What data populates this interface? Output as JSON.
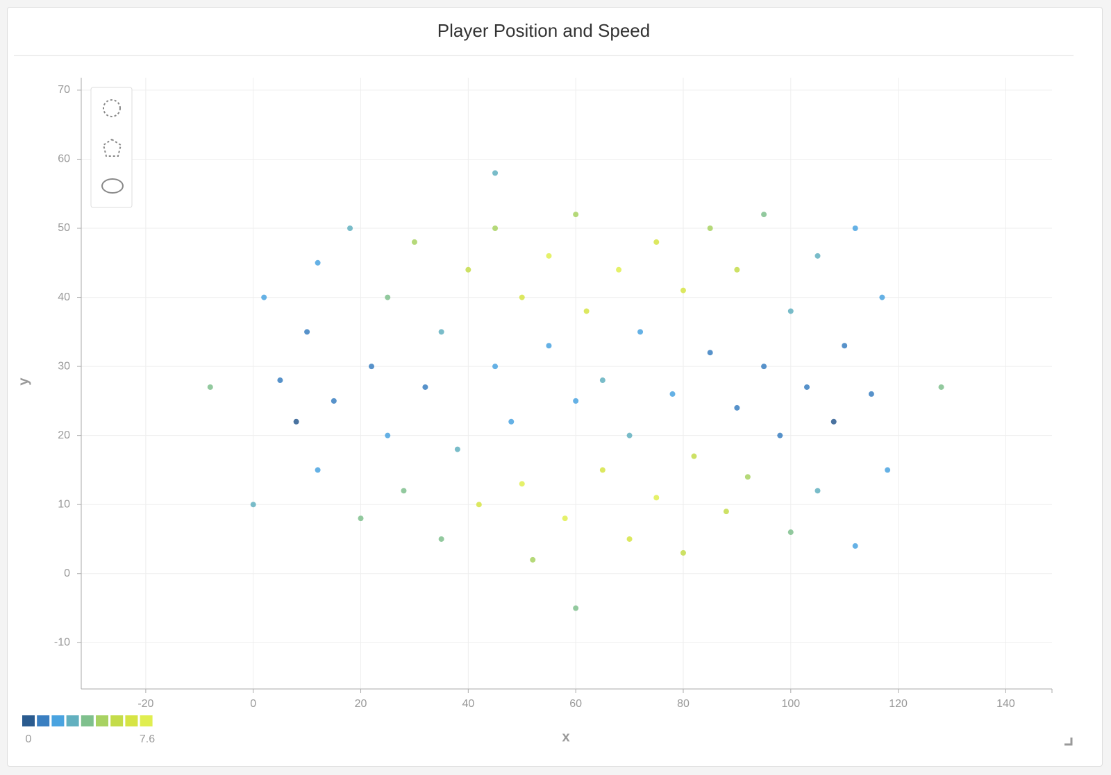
{
  "chart_data": {
    "type": "scatter",
    "title": "Player Position and Speed",
    "x_label": "x",
    "y_label": "y",
    "xlim": [
      -32,
      148.6
    ],
    "ylim": [
      -16.7,
      71.8
    ],
    "xticks": [
      -20,
      0,
      20,
      40,
      60,
      80,
      100,
      120,
      140
    ],
    "yticks": [
      -10,
      0,
      10,
      20,
      30,
      40,
      50,
      60,
      70
    ],
    "grid": true,
    "colorscale": {
      "min": 0,
      "max": 7.6,
      "colors": [
        "#2a5b8f",
        "#3a7fc1",
        "#4aa3e0",
        "#62b0bf",
        "#7fc08d",
        "#a8d262",
        "#c4dc4a",
        "#d6e444",
        "#e0ee50"
      ]
    },
    "x": [
      5,
      8,
      10,
      12,
      12,
      15,
      18,
      20,
      22,
      25,
      25,
      28,
      30,
      32,
      35,
      35,
      38,
      40,
      42,
      45,
      45,
      48,
      50,
      50,
      52,
      55,
      55,
      58,
      60,
      60,
      62,
      65,
      65,
      68,
      70,
      70,
      72,
      75,
      75,
      78,
      80,
      80,
      82,
      85,
      85,
      88,
      90,
      90,
      92,
      95,
      95,
      98,
      100,
      100,
      103,
      105,
      105,
      108,
      110,
      112,
      112,
      115,
      117,
      2,
      0,
      118,
      -8,
      128,
      60,
      45
    ],
    "values": [
      28,
      22,
      35,
      15,
      45,
      25,
      50,
      8,
      30,
      20,
      40,
      12,
      48,
      27,
      5,
      35,
      18,
      44,
      10,
      30,
      50,
      22,
      40,
      13,
      2,
      33,
      46,
      8,
      25,
      52,
      38,
      15,
      28,
      44,
      5,
      20,
      35,
      48,
      11,
      26,
      41,
      3,
      17,
      32,
      50,
      9,
      24,
      44,
      14,
      30,
      52,
      20,
      38,
      6,
      27,
      46,
      12,
      22,
      33,
      50,
      4,
      26,
      40,
      40,
      10,
      15,
      27,
      27,
      -5,
      58
    ],
    "color_values": [
      1.2,
      0.8,
      1.5,
      2.0,
      2.5,
      1.0,
      3.0,
      3.5,
      1.4,
      1.8,
      3.8,
      4.2,
      4.8,
      1.6,
      4.0,
      2.8,
      3.2,
      5.8,
      6.2,
      2.0,
      5.0,
      2.4,
      6.5,
      6.8,
      4.5,
      2.2,
      6.9,
      7.0,
      1.9,
      4.6,
      6.0,
      6.4,
      2.6,
      7.2,
      6.6,
      3.0,
      2.5,
      6.1,
      7.4,
      1.7,
      6.3,
      5.2,
      5.5,
      1.5,
      4.9,
      5.8,
      1.3,
      5.1,
      4.4,
      1.1,
      3.6,
      1.6,
      2.9,
      3.8,
      0.9,
      3.2,
      2.7,
      0.7,
      1.2,
      2.4,
      2.1,
      1.0,
      1.8,
      2.2,
      2.8,
      1.9,
      3.5,
      4.0,
      3.9,
      3.3
    ]
  }
}
